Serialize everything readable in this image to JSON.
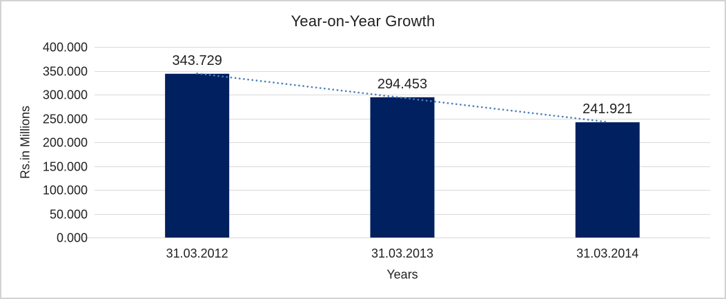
{
  "chart_data": {
    "type": "bar",
    "title": "Year-on-Year Growth",
    "xlabel": "Years",
    "ylabel": "Rs.in Millions",
    "categories": [
      "31.03.2012",
      "31.03.2013",
      "31.03.2014"
    ],
    "values": [
      343.729,
      294.453,
      241.921
    ],
    "data_labels": [
      "343.729",
      "294.453",
      "241.921"
    ],
    "ylim": [
      0,
      400
    ],
    "y_ticks": [
      0,
      50,
      100,
      150,
      200,
      250,
      300,
      350,
      400
    ],
    "y_tick_labels": [
      "0.000",
      "50.000",
      "100.000",
      "150.000",
      "200.000",
      "250.000",
      "300.000",
      "350.000",
      "400.000"
    ],
    "grid": true,
    "legend": false,
    "trendline": {
      "type": "linear",
      "style": "dotted"
    },
    "colors": {
      "bar": "#002060",
      "trendline": "#4E81BD",
      "gridline": "#D9D9D9",
      "axis_line": "#D9D9D9",
      "text": "#1f1f1f",
      "background": "#FFFFFF",
      "border": "#D2D2D2"
    }
  }
}
